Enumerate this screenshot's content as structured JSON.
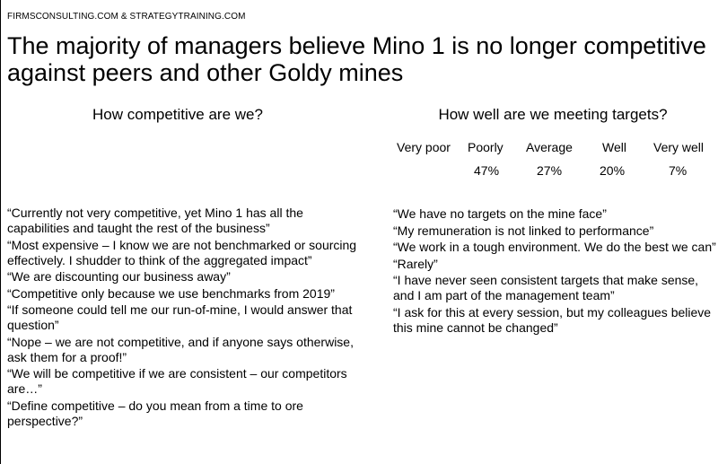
{
  "source": "FIRMSCONSULTING.COM & STRATEGYTRAINING.COM",
  "title": "The majority of managers believe Mino 1 is no longer competitive against peers and other Goldy mines",
  "left": {
    "heading": "How competitive are we?",
    "quotes": [
      "“Currently not very competitive, yet Mino 1 has all the capabilities and taught the rest of the business”",
      "“Most expensive – I know we are not benchmarked or sourcing effectively. I shudder to think of the aggregated impact”",
      "“We are discounting our business away”",
      "“Competitive only because we use benchmarks from 2019”",
      "“If someone could tell me our run-of-mine, I would answer that question”",
      "“Nope – we are not competitive, and if anyone says otherwise, ask them for a proof!”",
      "“We will be competitive if we are consistent – our competitors are…”",
      "“Define competitive – do you mean from a time to ore perspective?”"
    ]
  },
  "right": {
    "heading": "How well are we meeting targets?",
    "ratings": [
      {
        "label": "Very poor",
        "value": ""
      },
      {
        "label": "Poorly",
        "value": "47%"
      },
      {
        "label": "Average",
        "value": "27%"
      },
      {
        "label": "Well",
        "value": "20%"
      },
      {
        "label": "Very well",
        "value": "7%"
      }
    ],
    "quotes": [
      "“We have no targets on the mine face”",
      "“My remuneration is not linked to performance”",
      "“We work in a tough environment. We do the best we can”",
      "“Rarely”",
      "“I have never seen consistent targets that make sense, and I am part of the management team”",
      "“I ask for this at every session, but my colleagues believe this mine cannot be changed”"
    ]
  }
}
